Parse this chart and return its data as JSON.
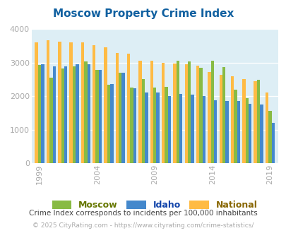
{
  "title": "Moscow Property Crime Index",
  "title_color": "#1060a0",
  "subtitle": "Crime Index corresponds to incidents per 100,000 inhabitants",
  "footer": "© 2025 CityRating.com - https://www.cityrating.com/crime-statistics/",
  "years": [
    1999,
    2000,
    2001,
    2002,
    2003,
    2004,
    2005,
    2006,
    2007,
    2008,
    2009,
    2010,
    2011,
    2012,
    2013,
    2014,
    2015,
    2016,
    2017,
    2018,
    2019
  ],
  "moscow": [
    2920,
    2560,
    2820,
    2890,
    3040,
    2780,
    2350,
    2700,
    2250,
    2500,
    2250,
    2280,
    3050,
    3040,
    2850,
    3050,
    2870,
    2190,
    1940,
    2480,
    1550
  ],
  "idaho": [
    2950,
    2890,
    2890,
    2950,
    2950,
    2790,
    2360,
    2700,
    2240,
    2110,
    2100,
    2010,
    2060,
    2040,
    2010,
    1870,
    1860,
    1860,
    1770,
    1740,
    1210
  ],
  "national": [
    3610,
    3660,
    3620,
    3610,
    3610,
    3530,
    3450,
    3290,
    3270,
    3060,
    3060,
    3000,
    2970,
    2950,
    2900,
    2720,
    2630,
    2600,
    2510,
    2440,
    2100
  ],
  "moscow_color": "#88bb44",
  "idaho_color": "#4488cc",
  "national_color": "#ffbb44",
  "bg_color": "#ddeef5",
  "ylim": [
    0,
    4000
  ],
  "yticks": [
    0,
    1000,
    2000,
    3000,
    4000
  ],
  "xtick_years": [
    1999,
    2004,
    2009,
    2014,
    2019
  ],
  "bar_width": 0.27
}
